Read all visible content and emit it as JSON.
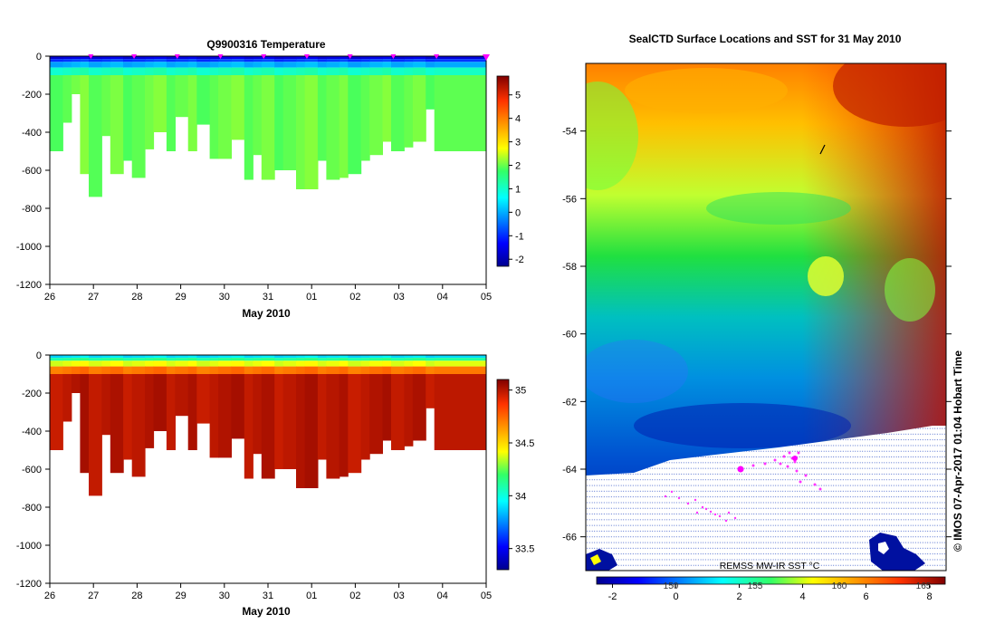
{
  "chart_data": [
    {
      "type": "heatmap",
      "title": "Q9900316  Temperature",
      "xlabel": "May 2010",
      "ylabel": "",
      "x_ticks": [
        "26",
        "27",
        "28",
        "29",
        "30",
        "31",
        "01",
        "02",
        "03",
        "04",
        "05"
      ],
      "y_ticks": [
        "0",
        "-200",
        "-400",
        "-600",
        "-800",
        "-1000",
        "-1200"
      ],
      "ylim": [
        -1200,
        0
      ],
      "colorbar_ticks": [
        "5",
        "4",
        "3",
        "2",
        "1",
        "0",
        "-1",
        "-2"
      ],
      "colorbar_range": [
        -2.3,
        5.8
      ],
      "profile_days": [
        26.0,
        26.3,
        26.5,
        26.7,
        26.9,
        27.2,
        27.4,
        27.7,
        27.9,
        28.2,
        28.4,
        28.7,
        28.9,
        29.2,
        29.4,
        29.7,
        29.9,
        30.2,
        30.5,
        30.7,
        30.9,
        31.2,
        31.4,
        31.7,
        31.9,
        32.2,
        32.4,
        32.7,
        32.9,
        33.2,
        33.4,
        33.7,
        33.9,
        34.2,
        34.4,
        34.7,
        34.9
      ],
      "profile_max_depth": [
        -500,
        -350,
        -200,
        -620,
        -740,
        -420,
        -620,
        -550,
        -640,
        -490,
        -400,
        -500,
        -320,
        -500,
        -360,
        -540,
        -540,
        -440,
        -650,
        -520,
        -650,
        -600,
        -600,
        -700,
        -700,
        -550,
        -650,
        -640,
        -620,
        -550,
        -520,
        -450,
        -500,
        -480,
        -450,
        -280,
        -500
      ],
      "surface_temp": -1.6,
      "deep_temp": 2.0,
      "max_depth_marker_days": [
        26.95,
        27.95,
        28.95,
        29.95,
        30.95,
        31.95,
        32.95,
        33.95,
        34.95
      ]
    },
    {
      "type": "heatmap",
      "title": "",
      "xlabel": "May 2010",
      "ylabel": "",
      "x_ticks": [
        "26",
        "27",
        "28",
        "29",
        "30",
        "31",
        "01",
        "02",
        "03",
        "04",
        "05"
      ],
      "y_ticks": [
        "0",
        "-200",
        "-400",
        "-600",
        "-800",
        "-1000",
        "-1200"
      ],
      "ylim": [
        -1200,
        0
      ],
      "colorbar_ticks": [
        "35",
        "34.5",
        "34",
        "33.5"
      ],
      "colorbar_range": [
        33.3,
        35.1
      ],
      "surface_value": 33.9,
      "deep_value": 35.0
    },
    {
      "type": "heatmap",
      "title": "SealCTD Surface Locations and SST for 31 May 2010",
      "y_ticks": [
        "-54",
        "-56",
        "-58",
        "-60",
        "-62",
        "-64",
        "-66"
      ],
      "ylim": [
        -67,
        -52.0
      ],
      "colorbar_ticks": [
        "-2",
        "0",
        "2",
        "4",
        "6",
        "8"
      ],
      "colorbar_range": [
        -2.5,
        8.5
      ],
      "colorbar_secondary_ticks": [
        "150",
        "155",
        "160",
        "165"
      ],
      "colorbar_label": "REMSS MW-IR SST °C",
      "copyright": "© IMOS 07-Apr-2017 01:04 Hobart Time"
    }
  ],
  "colors": {
    "axis": "#000000",
    "marker": "#ff00ff",
    "track": "#ff33ff",
    "land_grid": "#1a3fbf"
  }
}
